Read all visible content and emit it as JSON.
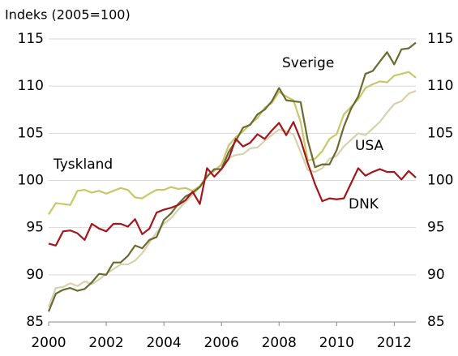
{
  "chart_data": {
    "type": "line",
    "y_label": "Indeks (2005=100)",
    "x": [
      2000,
      2000.25,
      2000.5,
      2000.75,
      2001,
      2001.25,
      2001.5,
      2001.75,
      2002,
      2002.25,
      2002.5,
      2002.75,
      2003,
      2003.25,
      2003.5,
      2003.75,
      2004,
      2004.25,
      2004.5,
      2004.75,
      2005,
      2005.25,
      2005.5,
      2005.75,
      2006,
      2006.25,
      2006.5,
      2006.75,
      2007,
      2007.25,
      2007.5,
      2007.75,
      2008,
      2008.25,
      2008.5,
      2008.75,
      2009,
      2009.25,
      2009.5,
      2009.75,
      2010,
      2010.25,
      2010.5,
      2010.75,
      2011,
      2011.25,
      2011.5,
      2011.75,
      2012,
      2012.25,
      2012.5,
      2012.75
    ],
    "series": [
      {
        "name": "USA",
        "color": "#d6d2ae",
        "values": [
          86.6,
          88.6,
          88.7,
          89.1,
          88.8,
          89.3,
          89.0,
          89.5,
          90.1,
          90.6,
          91.1,
          91.1,
          91.5,
          92.3,
          93.4,
          94.5,
          95.4,
          96.0,
          96.9,
          97.7,
          98.5,
          99.3,
          100.5,
          101.1,
          101.6,
          102.4,
          102.7,
          102.8,
          103.4,
          103.5,
          104.2,
          104.8,
          105.4,
          105.2,
          104.9,
          103.0,
          101.1,
          100.9,
          101.3,
          102.3,
          102.6,
          103.6,
          104.3,
          105.0,
          104.8,
          105.5,
          106.2,
          107.2,
          108.1,
          108.4,
          109.2,
          109.5
        ]
      },
      {
        "name": "Tyskland",
        "color": "#c9c768",
        "values": [
          96.4,
          97.6,
          97.5,
          97.4,
          98.9,
          99.0,
          98.7,
          98.9,
          98.6,
          98.9,
          99.2,
          99.0,
          98.2,
          98.1,
          98.6,
          99.0,
          99.0,
          99.3,
          99.1,
          99.2,
          98.9,
          99.4,
          100.5,
          101.0,
          101.7,
          103.7,
          104.6,
          105.2,
          106.0,
          106.6,
          107.7,
          108.2,
          109.4,
          108.9,
          108.5,
          106.2,
          102.1,
          102.3,
          103.1,
          104.4,
          104.9,
          107.0,
          107.8,
          108.6,
          109.8,
          110.2,
          110.5,
          110.4,
          111.1,
          111.3,
          111.5,
          110.9
        ]
      },
      {
        "name": "Sverige",
        "color": "#6b6a30",
        "values": [
          86.1,
          88.0,
          88.4,
          88.6,
          88.3,
          88.5,
          89.2,
          90.1,
          90.0,
          91.3,
          91.3,
          92.0,
          93.1,
          92.8,
          93.7,
          94.0,
          95.8,
          96.5,
          97.5,
          98.3,
          98.7,
          99.3,
          100.4,
          101.2,
          101.2,
          103.0,
          104.2,
          105.6,
          105.9,
          107.0,
          107.5,
          108.4,
          109.8,
          108.5,
          108.4,
          108.3,
          104.2,
          101.4,
          101.7,
          101.7,
          103.2,
          105.7,
          107.6,
          108.9,
          111.3,
          111.6,
          112.6,
          113.6,
          112.3,
          113.9,
          114.0,
          114.6
        ]
      },
      {
        "name": "DNK",
        "color": "#a3171c",
        "values": [
          93.3,
          93.1,
          94.6,
          94.7,
          94.4,
          93.7,
          95.4,
          94.9,
          94.6,
          95.4,
          95.4,
          95.1,
          95.9,
          94.3,
          94.9,
          96.6,
          96.9,
          97.1,
          97.4,
          97.9,
          98.8,
          97.5,
          101.3,
          100.4,
          101.2,
          102.3,
          104.4,
          103.6,
          104.0,
          104.9,
          104.4,
          105.3,
          106.1,
          104.8,
          106.2,
          104.3,
          101.8,
          99.6,
          97.8,
          98.1,
          98.0,
          98.1,
          99.7,
          101.3,
          100.5,
          100.9,
          101.2,
          100.9,
          100.9,
          100.1,
          101.0,
          100.3
        ]
      }
    ],
    "xlim": [
      2000,
      2012.75
    ],
    "xticks": [
      2000,
      2002,
      2004,
      2006,
      2008,
      2010,
      2012
    ],
    "ylim": [
      85,
      115
    ],
    "yticks": [
      85,
      90,
      95,
      100,
      105,
      110,
      115
    ],
    "grid": true
  }
}
